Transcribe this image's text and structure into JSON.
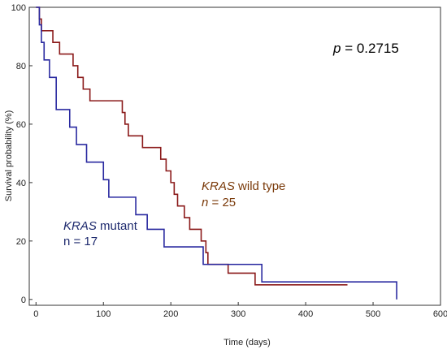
{
  "chart_data": {
    "type": "line",
    "title": "",
    "xlabel": "Time (days)",
    "ylabel": "Survival probability (%)",
    "xlim": [
      -10,
      600
    ],
    "ylim": [
      -2,
      100
    ],
    "xticks": [
      0,
      100,
      200,
      300,
      400,
      500,
      600
    ],
    "yticks": [
      0,
      20,
      40,
      60,
      80,
      100
    ],
    "grid": false,
    "annotations": {
      "p_italic": "p",
      "p_value": " = 0.2715",
      "wild_gene": "KRAS",
      "wild_text": " wild type",
      "wild_n_italic": "n",
      "wild_n_value": " = 25",
      "mut_gene": "KRAS",
      "mut_text": " mutant",
      "mut_n": "n = 17"
    },
    "series": [
      {
        "color": "#8b1a1a",
        "x": [
          0,
          5,
          8,
          25,
          35,
          55,
          62,
          70,
          80,
          95,
          128,
          132,
          137,
          158,
          185,
          193,
          200,
          205,
          210,
          220,
          228,
          245,
          252,
          255,
          262,
          285,
          325,
          462
        ],
        "y": [
          100,
          96,
          92,
          88,
          84,
          80,
          76,
          72,
          68,
          68,
          64,
          60,
          56,
          52,
          48,
          44,
          40,
          36,
          32,
          28,
          24,
          20,
          16,
          12,
          12,
          9,
          5,
          5
        ]
      },
      {
        "color": "#2a2aa0",
        "x": [
          0,
          5,
          8,
          12,
          20,
          30,
          50,
          60,
          75,
          100,
          108,
          148,
          165,
          190,
          248,
          335,
          535,
          535
        ],
        "y": [
          100,
          94,
          88,
          82,
          76,
          65,
          59,
          53,
          47,
          41,
          35,
          29,
          24,
          18,
          12,
          6,
          6,
          0
        ]
      }
    ]
  }
}
